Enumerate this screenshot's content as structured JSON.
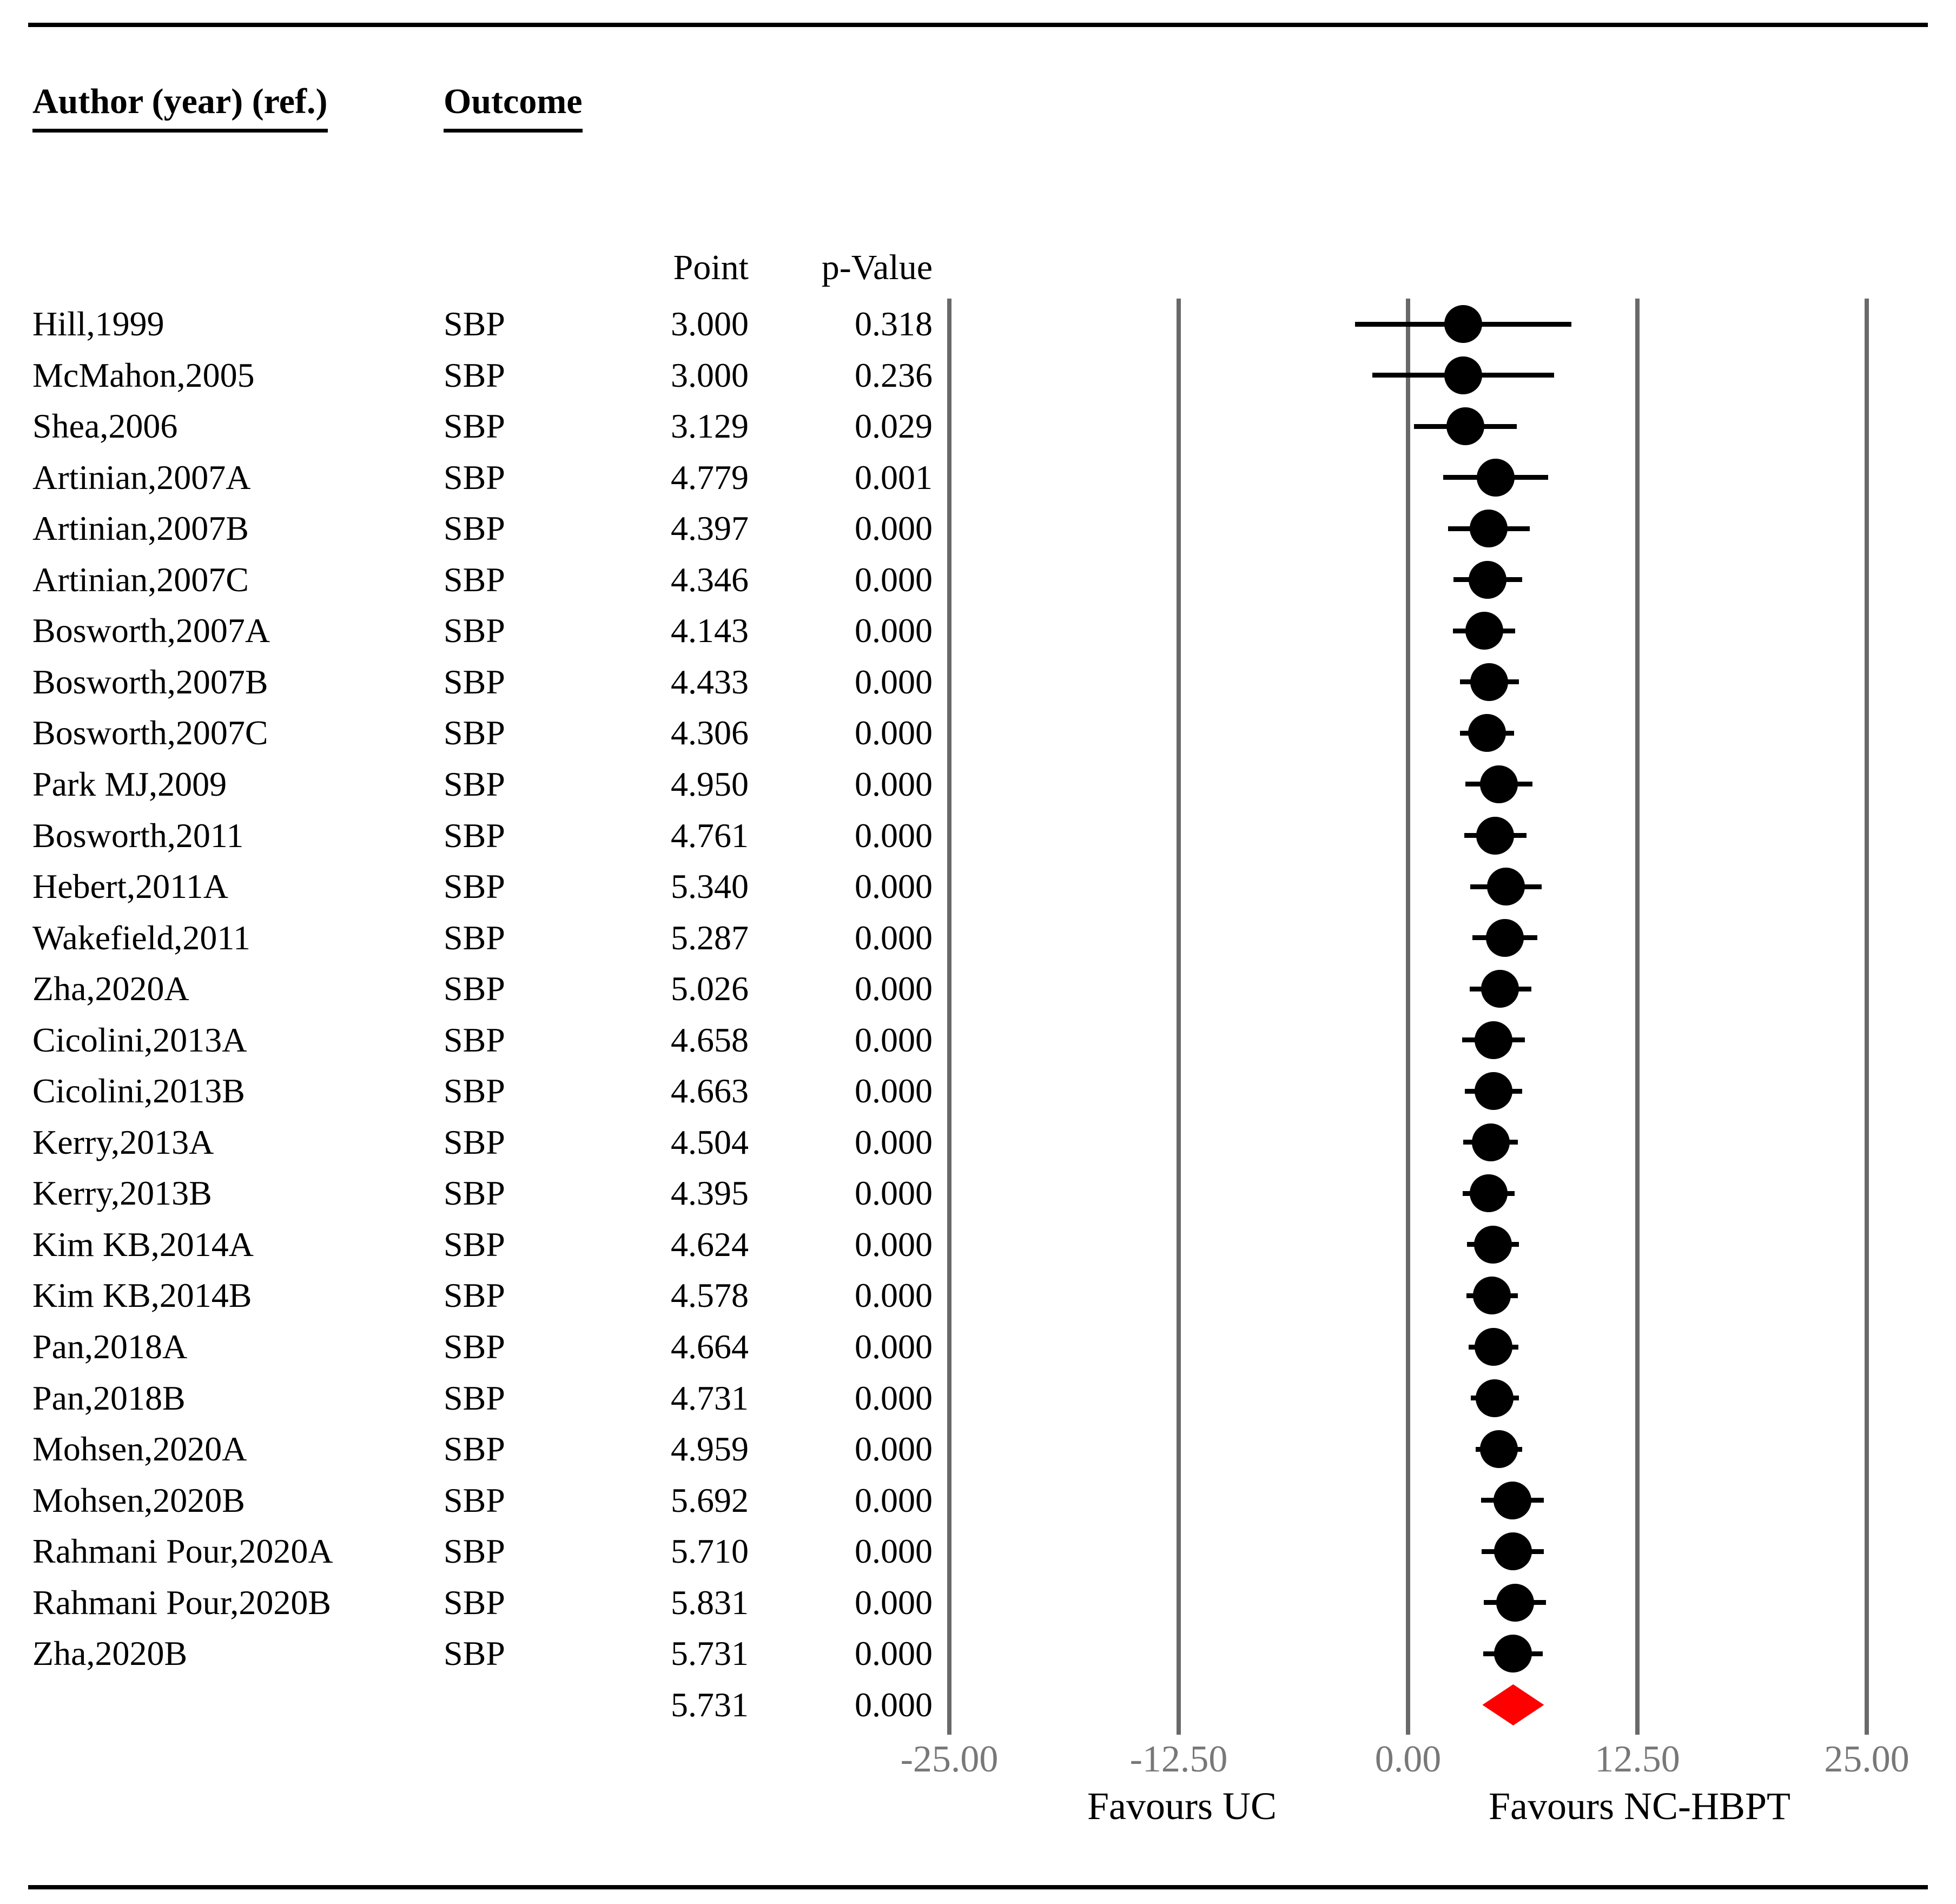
{
  "table": {
    "col_author": "Author (year) (ref.)",
    "col_outcome": "Outcome",
    "col_point": "Point",
    "col_pvalue": "p-Value"
  },
  "chart_data": {
    "type": "forest",
    "xlabel_left": "Favours UC",
    "xlabel_right": "Favours NC-HBPT",
    "xlim": [
      -25,
      25
    ],
    "grid": "vertical-lines",
    "x_ticks": [
      {
        "label": "-25.00",
        "value": -25
      },
      {
        "label": "-12.50",
        "value": -12.5
      },
      {
        "label": "0.00",
        "value": 0
      },
      {
        "label": "12.50",
        "value": 12.5
      },
      {
        "label": "25.00",
        "value": 25
      }
    ],
    "studies": [
      {
        "author": "Hill,1999",
        "outcome": "SBP",
        "point": 3.0,
        "point_label": "3.000",
        "p_label": "0.318",
        "ci": [
          -2.89,
          8.89
        ]
      },
      {
        "author": "McMahon,2005",
        "outcome": "SBP",
        "point": 3.0,
        "point_label": "3.000",
        "p_label": "0.236",
        "ci": [
          -1.96,
          7.96
        ]
      },
      {
        "author": "Shea,2006",
        "outcome": "SBP",
        "point": 3.129,
        "point_label": "3.129",
        "p_label": "0.029",
        "ci": [
          0.32,
          5.94
        ]
      },
      {
        "author": "Artinian,2007A",
        "outcome": "SBP",
        "point": 4.779,
        "point_label": "4.779",
        "p_label": "0.001",
        "ci": [
          1.93,
          7.63
        ]
      },
      {
        "author": "Artinian,2007B",
        "outcome": "SBP",
        "point": 4.397,
        "point_label": "4.397",
        "p_label": "0.000",
        "ci": [
          2.18,
          6.62
        ]
      },
      {
        "author": "Artinian,2007C",
        "outcome": "SBP",
        "point": 4.346,
        "point_label": "4.346",
        "p_label": "0.000",
        "ci": [
          2.48,
          6.22
        ]
      },
      {
        "author": "Bosworth,2007A",
        "outcome": "SBP",
        "point": 4.143,
        "point_label": "4.143",
        "p_label": "0.000",
        "ci": [
          2.44,
          5.84
        ]
      },
      {
        "author": "Bosworth,2007B",
        "outcome": "SBP",
        "point": 4.433,
        "point_label": "4.433",
        "p_label": "0.000",
        "ci": [
          2.83,
          6.03
        ]
      },
      {
        "author": "Bosworth,2007C",
        "outcome": "SBP",
        "point": 4.306,
        "point_label": "4.306",
        "p_label": "0.000",
        "ci": [
          2.84,
          5.78
        ]
      },
      {
        "author": "Park MJ,2009",
        "outcome": "SBP",
        "point": 4.95,
        "point_label": "4.950",
        "p_label": "0.000",
        "ci": [
          3.12,
          6.78
        ]
      },
      {
        "author": "Bosworth,2011",
        "outcome": "SBP",
        "point": 4.761,
        "point_label": "4.761",
        "p_label": "0.000",
        "ci": [
          3.07,
          6.45
        ]
      },
      {
        "author": "Hebert,2011A",
        "outcome": "SBP",
        "point": 5.34,
        "point_label": "5.340",
        "p_label": "0.000",
        "ci": [
          3.39,
          7.29
        ]
      },
      {
        "author": "Wakefield,2011",
        "outcome": "SBP",
        "point": 5.287,
        "point_label": "5.287",
        "p_label": "0.000",
        "ci": [
          3.51,
          7.06
        ]
      },
      {
        "author": "Zha,2020A",
        "outcome": "SBP",
        "point": 5.026,
        "point_label": "5.026",
        "p_label": "0.000",
        "ci": [
          3.35,
          6.71
        ]
      },
      {
        "author": "Cicolini,2013A",
        "outcome": "SBP",
        "point": 4.658,
        "point_label": "4.658",
        "p_label": "0.000",
        "ci": [
          2.96,
          6.36
        ]
      },
      {
        "author": "Cicolini,2013B",
        "outcome": "SBP",
        "point": 4.663,
        "point_label": "4.663",
        "p_label": "0.000",
        "ci": [
          3.11,
          6.21
        ]
      },
      {
        "author": "Kerry,2013A",
        "outcome": "SBP",
        "point": 4.504,
        "point_label": "4.504",
        "p_label": "0.000",
        "ci": [
          3.02,
          5.98
        ]
      },
      {
        "author": "Kerry,2013B",
        "outcome": "SBP",
        "point": 4.395,
        "point_label": "4.395",
        "p_label": "0.000",
        "ci": [
          2.97,
          5.82
        ]
      },
      {
        "author": "Kim KB,2014A",
        "outcome": "SBP",
        "point": 4.624,
        "point_label": "4.624",
        "p_label": "0.000",
        "ci": [
          3.2,
          6.04
        ]
      },
      {
        "author": "Kim KB,2014B",
        "outcome": "SBP",
        "point": 4.578,
        "point_label": "4.578",
        "p_label": "0.000",
        "ci": [
          3.19,
          5.97
        ]
      },
      {
        "author": "Pan,2018A",
        "outcome": "SBP",
        "point": 4.664,
        "point_label": "4.664",
        "p_label": "0.000",
        "ci": [
          3.3,
          6.02
        ]
      },
      {
        "author": "Pan,2018B",
        "outcome": "SBP",
        "point": 4.731,
        "point_label": "4.731",
        "p_label": "0.000",
        "ci": [
          3.43,
          6.03
        ]
      },
      {
        "author": "Mohsen,2020A",
        "outcome": "SBP",
        "point": 4.959,
        "point_label": "4.959",
        "p_label": "0.000",
        "ci": [
          3.69,
          6.23
        ]
      },
      {
        "author": "Mohsen,2020B",
        "outcome": "SBP",
        "point": 5.692,
        "point_label": "5.692",
        "p_label": "0.000",
        "ci": [
          3.97,
          7.41
        ]
      },
      {
        "author": "Rahmani Pour,2020A",
        "outcome": "SBP",
        "point": 5.71,
        "point_label": "5.710",
        "p_label": "0.000",
        "ci": [
          4.01,
          7.41
        ]
      },
      {
        "author": "Rahmani Pour,2020B",
        "outcome": "SBP",
        "point": 5.831,
        "point_label": "5.831",
        "p_label": "0.000",
        "ci": [
          4.13,
          7.53
        ]
      },
      {
        "author": "Zha,2020B",
        "outcome": "SBP",
        "point": 5.731,
        "point_label": "5.731",
        "p_label": "0.000",
        "ci": [
          4.11,
          7.35
        ]
      }
    ],
    "summary": {
      "point": 5.731,
      "point_label": "5.731",
      "p_label": "0.000",
      "ci": [
        4.05,
        7.41
      ]
    }
  },
  "colors": {
    "marker": "#000000",
    "summary_diamond": "#fe0000",
    "gridline": "#696969",
    "tick_text": "#787878",
    "text": "#000000",
    "rule": "#000000"
  }
}
